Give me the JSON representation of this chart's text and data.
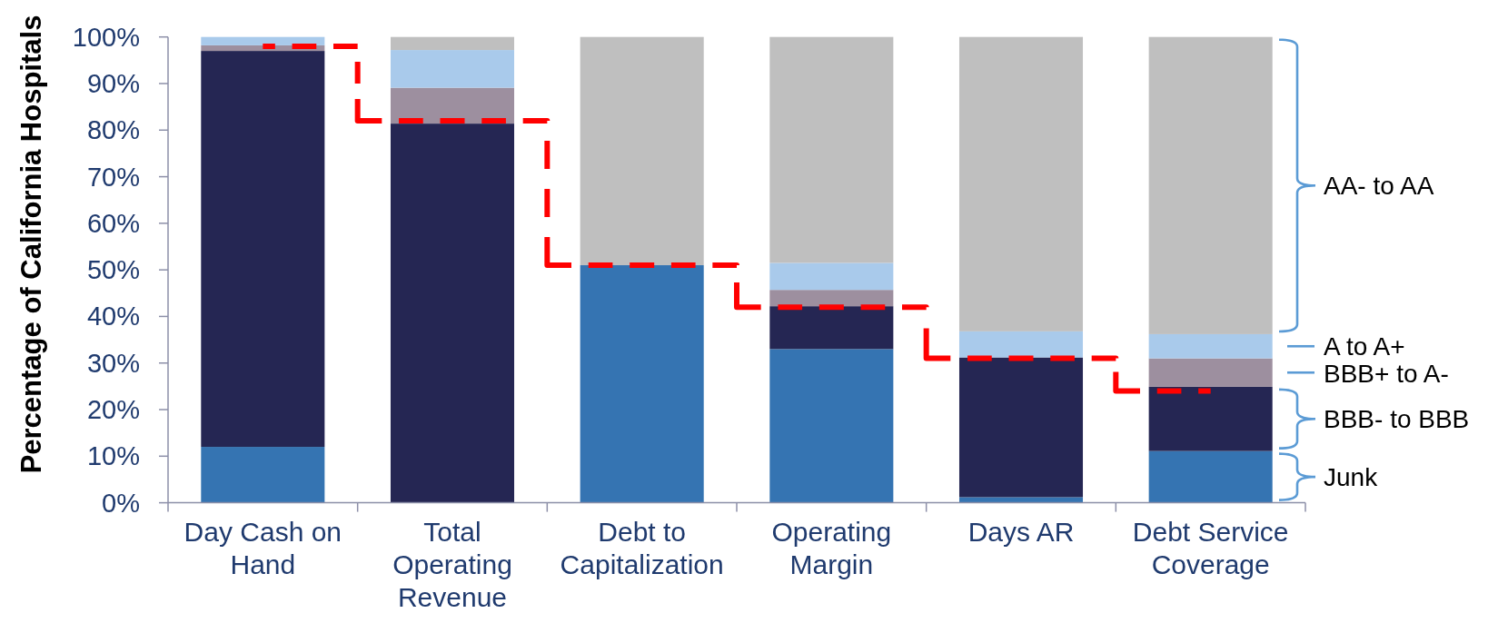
{
  "chart_data": {
    "type": "bar",
    "stacked": true,
    "ylabel": "Percentage of California Hospitals",
    "categories": [
      "Day Cash on Hand",
      "Total Operating Revenue",
      "Debt to Capitalization",
      "Operating Margin",
      "Days AR",
      "Debt Service Coverage"
    ],
    "series": [
      {
        "name": "Junk",
        "color": "#3574b2",
        "values": [
          12,
          0,
          51,
          33,
          1.2,
          11.1
        ]
      },
      {
        "name": "BBB- to BBB",
        "color": "#252653",
        "values": [
          85,
          81.4,
          0,
          9.2,
          30,
          13.8
        ]
      },
      {
        "name": "BBB+ to A-",
        "color": "#9d8f9f",
        "values": [
          1.2,
          7.7,
          0,
          3.5,
          0,
          6.1
        ]
      },
      {
        "name": "A to A+",
        "color": "#a9caeb",
        "values": [
          1.8,
          8.1,
          0,
          5.8,
          5.6,
          5.2
        ]
      },
      {
        "name": "AA- to AA",
        "color": "#bfbfbf",
        "values": [
          0,
          2.8,
          49,
          48.5,
          63.2,
          63.8
        ]
      },
      {
        "type": "step",
        "color": "#ff0000",
        "line_style": "dashed",
        "values": [
          98,
          82,
          51,
          42,
          31,
          24
        ]
      }
    ],
    "ylim": [
      0,
      100
    ],
    "yticks": [
      {
        "value": 0,
        "label": "0%"
      },
      {
        "value": 10,
        "label": "10%"
      },
      {
        "value": 20,
        "label": "20%"
      },
      {
        "value": 30,
        "label": "30%"
      },
      {
        "value": 40,
        "label": "40%"
      },
      {
        "value": 50,
        "label": "50%"
      },
      {
        "value": 60,
        "label": "60%"
      },
      {
        "value": 70,
        "label": "70%"
      },
      {
        "value": 80,
        "label": "80%"
      },
      {
        "value": 90,
        "label": "90%"
      },
      {
        "value": 100,
        "label": "100%"
      }
    ],
    "legend": "right"
  }
}
